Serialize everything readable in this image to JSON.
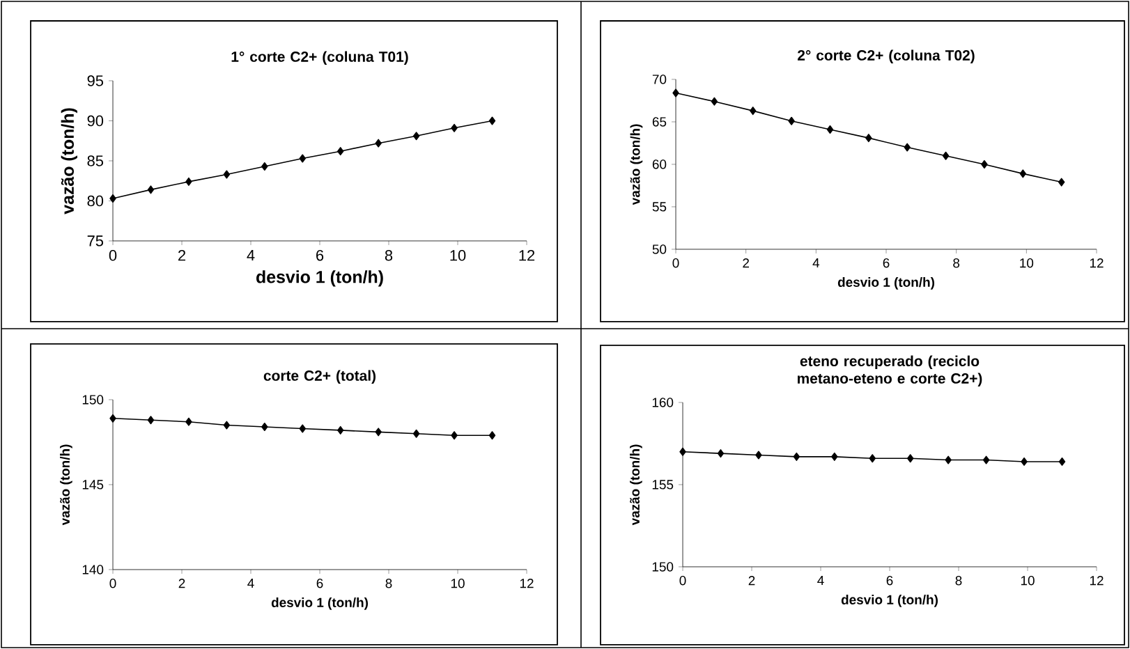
{
  "chart_data": [
    {
      "type": "line",
      "title": "1° corte C2+ (coluna T01)",
      "xlabel": "desvio 1 (ton/h)",
      "ylabel": "vazão (ton/h)",
      "color": "#000000",
      "marker": "diamond",
      "line_style": "solid",
      "x": [
        0,
        1.1,
        2.2,
        3.3,
        4.4,
        5.5,
        6.6,
        7.7,
        8.8,
        9.9,
        11
      ],
      "values": [
        80.3,
        81.4,
        82.4,
        83.3,
        84.3,
        85.3,
        86.2,
        87.2,
        88.1,
        89.1,
        90.0
      ],
      "xlim": [
        0,
        12
      ],
      "xticks": [
        0,
        2,
        4,
        6,
        8,
        10,
        12
      ],
      "ylim": [
        75,
        95
      ],
      "yticks": [
        75,
        80,
        85,
        90,
        95
      ]
    },
    {
      "type": "line",
      "title": "2° corte C2+ (coluna T02)",
      "xlabel": "desvio 1 (ton/h)",
      "ylabel": "vazão (ton/h)",
      "color": "#000000",
      "marker": "diamond",
      "line_style": "solid",
      "x": [
        0,
        1.1,
        2.2,
        3.3,
        4.4,
        5.5,
        6.6,
        7.7,
        8.8,
        9.9,
        11
      ],
      "values": [
        68.4,
        67.4,
        66.3,
        65.1,
        64.1,
        63.1,
        62.0,
        61.0,
        60.0,
        58.9,
        57.9
      ],
      "xlim": [
        0,
        12
      ],
      "xticks": [
        0,
        2,
        4,
        6,
        8,
        10,
        12
      ],
      "ylim": [
        50,
        70
      ],
      "yticks": [
        50,
        55,
        60,
        65,
        70
      ]
    },
    {
      "type": "line",
      "title": "corte C2+ (total)",
      "xlabel": "desvio 1 (ton/h)",
      "ylabel": "vazão (ton/h)",
      "color": "#000000",
      "marker": "diamond",
      "line_style": "solid",
      "x": [
        0,
        1.1,
        2.2,
        3.3,
        4.4,
        5.5,
        6.6,
        7.7,
        8.8,
        9.9,
        11
      ],
      "values": [
        148.9,
        148.8,
        148.7,
        148.5,
        148.4,
        148.3,
        148.2,
        148.1,
        148.0,
        147.9,
        147.9
      ],
      "xlim": [
        0,
        12
      ],
      "xticks": [
        0,
        2,
        4,
        6,
        8,
        10,
        12
      ],
      "ylim": [
        140,
        150
      ],
      "yticks": [
        140,
        145,
        150
      ]
    },
    {
      "type": "line",
      "title": "eteno recuperado (reciclo metano-eteno e corte C2+)",
      "xlabel": "desvio 1 (ton/h)",
      "ylabel": "vazão (ton/h)",
      "color": "#000000",
      "marker": "diamond",
      "line_style": "solid",
      "x": [
        0,
        1.1,
        2.2,
        3.3,
        4.4,
        5.5,
        6.6,
        7.7,
        8.8,
        9.9,
        11
      ],
      "values": [
        157.0,
        156.9,
        156.8,
        156.7,
        156.7,
        156.6,
        156.6,
        156.5,
        156.5,
        156.4,
        156.4
      ],
      "xlim": [
        0,
        12
      ],
      "xticks": [
        0,
        2,
        4,
        6,
        8,
        10,
        12
      ],
      "ylim": [
        150,
        160
      ],
      "yticks": [
        150,
        155,
        160
      ]
    }
  ]
}
